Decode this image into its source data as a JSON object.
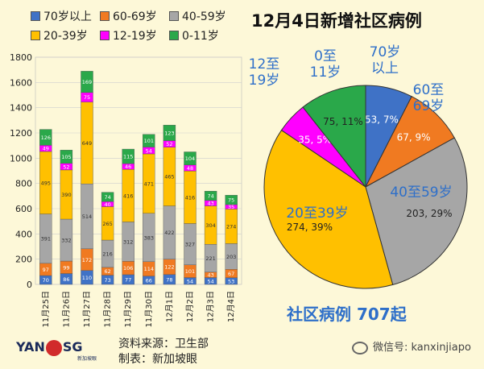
{
  "title": "12月4日新增社区病例",
  "community_total": "社区病例 707起",
  "footer": {
    "source": "资料来源：卫生部",
    "maker": "制表：新加坡眼"
  },
  "logo": {
    "text_left": "YAN",
    "text_right": "SG",
    "sub": "新加坡眼"
  },
  "watermark": "微信号: kanxinjiapo",
  "chart_data": [
    {
      "type": "bar",
      "stacked": true,
      "categories": [
        "11月25日",
        "11月26日",
        "11月27日",
        "11月28日",
        "11月29日",
        "11月30日",
        "12月1日",
        "12月2日",
        "12月3日",
        "12月4日"
      ],
      "ylim": [
        0,
        1800
      ],
      "yticks": [
        0,
        200,
        400,
        600,
        800,
        1000,
        1200,
        1400,
        1600,
        1800
      ],
      "series": [
        {
          "name": "70岁以上",
          "color": "#3f72c6",
          "values": [
            70,
            86,
            110,
            73,
            77,
            66,
            78,
            54,
            54,
            53
          ]
        },
        {
          "name": "60-69岁",
          "color": "#f07a21",
          "values": [
            97,
            99,
            172,
            62,
            106,
            114,
            122,
            101,
            43,
            67
          ]
        },
        {
          "name": "40-59岁",
          "color": "#a6a6a6",
          "values": [
            391,
            332,
            514,
            216,
            312,
            383,
            422,
            327,
            221,
            203
          ]
        },
        {
          "name": "20-39岁",
          "color": "#ffc000",
          "values": [
            495,
            390,
            649,
            265,
            416,
            471,
            465,
            416,
            304,
            274
          ]
        },
        {
          "name": "12-19岁",
          "color": "#ff00ff",
          "values": [
            49,
            52,
            75,
            40,
            46,
            54,
            52,
            48,
            43,
            35
          ]
        },
        {
          "name": "0-11岁",
          "color": "#2aa84a",
          "values": [
            126,
            105,
            169,
            74,
            115,
            101,
            123,
            104,
            74,
            75
          ]
        }
      ],
      "legend_position": "top"
    },
    {
      "type": "pie",
      "slices": [
        {
          "name": "70岁以上",
          "value": 53,
          "pct": "7%",
          "color": "#3f72c6"
        },
        {
          "name": "60至69岁",
          "value": 67,
          "pct": "9%",
          "color": "#f07a21"
        },
        {
          "name": "40至59岁",
          "value": 203,
          "pct": "29%",
          "color": "#a6a6a6"
        },
        {
          "name": "20至39岁",
          "value": 274,
          "pct": "39%",
          "color": "#ffc000"
        },
        {
          "name": "12至19岁",
          "value": 35,
          "pct": "5%",
          "color": "#ff00ff"
        },
        {
          "name": "0至11岁",
          "value": 75,
          "pct": "11%",
          "color": "#2aa84a"
        }
      ]
    }
  ]
}
